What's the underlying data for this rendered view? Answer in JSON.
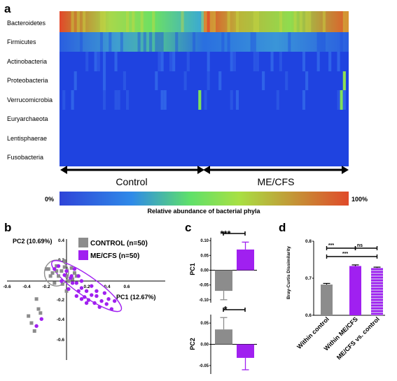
{
  "panels": {
    "a": {
      "label": "a",
      "phyla": [
        "Bacteroidetes",
        "Firmicutes",
        "Actinobacteria",
        "Proteobacteria",
        "Verrucomicrobia",
        "Euryarchaeota",
        "Lentisphaerae",
        "Fusobacteria"
      ],
      "groups": [
        "Control",
        "ME/CFS"
      ],
      "colorbar": {
        "min_label": "0%",
        "max_label": "100%",
        "title": "Relative abundance of bacterial phyla"
      }
    },
    "b": {
      "label": "b",
      "x_axis_label": "PC1 (12.67%)",
      "y_axis_label": "PC2 (10.69%)",
      "x_ticks": [
        "-0.6",
        "-0.4",
        "-0.2",
        "0.2",
        "0.4",
        "0.6"
      ],
      "y_ticks": [
        "0.4",
        "0.2",
        "-0.2",
        "-0.4",
        "-0.6"
      ],
      "legend": [
        {
          "label": "CONTROL (n=50)",
          "color": "#8c8c8c"
        },
        {
          "label": "ME/CFS (n=50)",
          "color": "#a020f0"
        }
      ]
    },
    "c": {
      "label": "c",
      "pc1": {
        "ylabel": "PC1",
        "ticks": [
          "0.10",
          "0.05",
          "0.00",
          "-0.05",
          "-0.10"
        ],
        "sig": "***"
      },
      "pc2": {
        "ylabel": "PC2",
        "ticks": [
          "0.05",
          "0.00",
          "-0.05"
        ],
        "sig": "*"
      }
    },
    "d": {
      "label": "d",
      "ylabel": "Bray-Curtis Dissimilarity",
      "ticks": [
        "0.6",
        "0.7",
        "0.8"
      ],
      "categories": [
        "Within control",
        "Within ME/CFS",
        "ME/CFS vs. control"
      ],
      "sig": [
        "***",
        "ns",
        "***"
      ]
    }
  },
  "chart_data": [
    {
      "type": "heatmap",
      "rows": [
        "Bacteroidetes",
        "Firmicutes",
        "Actinobacteria",
        "Proteobacteria",
        "Verrucomicrobia",
        "Euryarchaeota",
        "Lentisphaerae",
        "Fusobacteria"
      ],
      "groups": [
        "Control",
        "ME/CFS"
      ],
      "samples_per_group": 50,
      "colorscale": [
        "#1f3fe0",
        "#2f80e8",
        "#5ee06a",
        "#9ae043",
        "#e04a2a"
      ],
      "range": [
        0,
        100
      ]
    },
    {
      "type": "scatter",
      "xlabel": "PC1 (12.67%)",
      "ylabel": "PC2 (10.69%)",
      "xlim": [
        -0.6,
        0.6
      ],
      "ylim": [
        -0.6,
        0.4
      ],
      "series": [
        {
          "name": "CONTROL (n=50)",
          "color": "#8c8c8c",
          "points": [
            [
              -0.2,
              0.12
            ],
            [
              -0.16,
              0.05
            ],
            [
              -0.1,
              0.15
            ],
            [
              -0.05,
              0.1
            ],
            [
              0.0,
              0.05
            ],
            [
              -0.12,
              -0.02
            ],
            [
              -0.04,
              -0.03
            ],
            [
              0.05,
              0.13
            ],
            [
              0.1,
              0.05
            ],
            [
              -0.18,
              0.12
            ],
            [
              -0.08,
              0.05
            ],
            [
              0.02,
              0.0
            ],
            [
              -0.02,
              0.14
            ],
            [
              -0.14,
              0.08
            ],
            [
              0.06,
              0.02
            ],
            [
              -0.1,
              0.1
            ],
            [
              0.0,
              -0.1
            ],
            [
              -0.3,
              -0.18
            ],
            [
              -0.26,
              -0.32
            ],
            [
              -0.35,
              -0.42
            ],
            [
              -0.38,
              -0.35
            ],
            [
              -0.32,
              -0.5
            ],
            [
              -0.28,
              -0.28
            ],
            [
              -0.02,
              0.2
            ],
            [
              0.08,
              0.08
            ]
          ]
        },
        {
          "name": "ME/CFS (n=50)",
          "color": "#a020f0",
          "points": [
            [
              0.0,
              0.1
            ],
            [
              0.04,
              0.03
            ],
            [
              0.1,
              -0.02
            ],
            [
              0.15,
              -0.07
            ],
            [
              0.2,
              -0.1
            ],
            [
              0.25,
              -0.14
            ],
            [
              0.3,
              -0.15
            ],
            [
              0.35,
              -0.2
            ],
            [
              0.4,
              -0.23
            ],
            [
              0.45,
              -0.28
            ],
            [
              0.12,
              -0.1
            ],
            [
              0.18,
              -0.16
            ],
            [
              0.22,
              -0.19
            ],
            [
              0.28,
              -0.22
            ],
            [
              0.33,
              -0.26
            ],
            [
              0.06,
              -0.02
            ],
            [
              -0.02,
              0.06
            ],
            [
              0.08,
              0.12
            ],
            [
              0.02,
              -0.08
            ],
            [
              0.1,
              -0.15
            ],
            [
              0.15,
              0.0
            ],
            [
              0.25,
              -0.05
            ],
            [
              0.3,
              -0.1
            ],
            [
              0.38,
              -0.12
            ],
            [
              0.42,
              -0.18
            ],
            [
              -0.05,
              0.0
            ],
            [
              0.05,
              0.05
            ],
            [
              0.12,
              0.05
            ],
            [
              -0.12,
              0.12
            ],
            [
              -0.08,
              0.15
            ],
            [
              -0.3,
              -0.45
            ],
            [
              -0.25,
              -0.38
            ],
            [
              0.48,
              -0.2
            ],
            [
              0.2,
              -0.22
            ],
            [
              0.15,
              -0.18
            ]
          ]
        }
      ],
      "ellipses": [
        {
          "series": "CONTROL (n=50)",
          "cx": -0.1,
          "cy": 0.08,
          "rx": 0.12,
          "ry": 0.13,
          "angle": 0
        },
        {
          "series": "ME/CFS (n=50)",
          "cx": 0.2,
          "cy": -0.05,
          "rx": 0.42,
          "ry": 0.1,
          "angle": 35
        }
      ]
    },
    {
      "type": "bar",
      "categories": [
        "CONTROL",
        "ME/CFS"
      ],
      "series": [
        {
          "values": [
            -0.07,
            0.07
          ],
          "errors": [
            0.03,
            0.025
          ]
        }
      ],
      "ylabel": "PC1",
      "ylim": [
        -0.11,
        0.11
      ],
      "significance": "***"
    },
    {
      "type": "bar",
      "categories": [
        "CONTROL",
        "ME/CFS"
      ],
      "series": [
        {
          "values": [
            0.035,
            -0.032
          ],
          "errors": [
            0.028,
            0.028
          ]
        }
      ],
      "ylabel": "PC2",
      "ylim": [
        -0.07,
        0.07
      ],
      "significance": "*"
    },
    {
      "type": "bar",
      "categories": [
        "Within control",
        "Within ME/CFS",
        "ME/CFS vs. control"
      ],
      "series": [
        {
          "values": [
            0.683,
            0.733,
            0.728
          ],
          "errors": [
            0.003,
            0.003,
            0.002
          ]
        }
      ],
      "ylabel": "Bray-Curtis Dissimilarity",
      "ylim": [
        0.6,
        0.8
      ],
      "colors": [
        "#8c8c8c",
        "#a020f0",
        "#b15ee8"
      ]
    }
  ]
}
